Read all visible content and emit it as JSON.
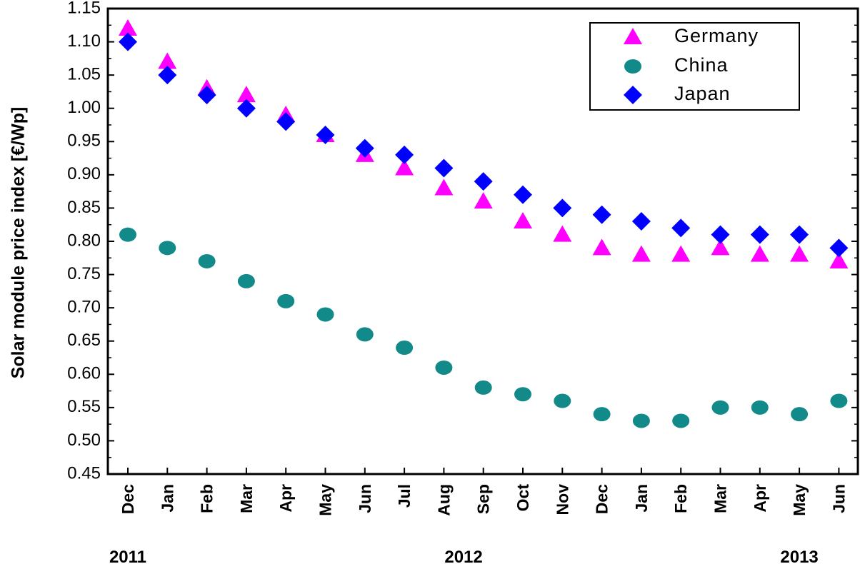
{
  "chart_data": {
    "type": "scatter",
    "ylabel": "Solar module price index [€/Wp]",
    "ylim": [
      0.45,
      1.15
    ],
    "yticks": [
      0.45,
      0.5,
      0.55,
      0.6,
      0.65,
      0.7,
      0.75,
      0.8,
      0.85,
      0.9,
      0.95,
      1.0,
      1.05,
      1.1,
      1.15
    ],
    "ytick_labels": [
      "0.45",
      "0.50",
      "0.55",
      "0.60",
      "0.65",
      "0.70",
      "0.75",
      "0.80",
      "0.85",
      "0.90",
      "0.95",
      "1.00",
      "1.05",
      "1.10",
      "1.15"
    ],
    "categories": [
      "Dec",
      "Jan",
      "Feb",
      "Mar",
      "Apr",
      "May",
      "Jun",
      "Jul",
      "Aug",
      "Sep",
      "Oct",
      "Nov",
      "Dec",
      "Jan",
      "Feb",
      "Mar",
      "Apr",
      "May",
      "Jun"
    ],
    "years": [
      {
        "label": "2011",
        "anchor_index": 0
      },
      {
        "label": "2012",
        "anchor_index": 8.5
      },
      {
        "label": "2013",
        "anchor_index": 17
      }
    ],
    "legend_position": "top-right",
    "series": [
      {
        "name": "Germany",
        "marker": "triangle",
        "color": "#ff00ff",
        "values": [
          1.12,
          1.07,
          1.03,
          1.02,
          0.99,
          0.96,
          0.93,
          0.91,
          0.88,
          0.86,
          0.83,
          0.81,
          0.79,
          0.78,
          0.78,
          0.79,
          0.78,
          0.78,
          0.77
        ]
      },
      {
        "name": "China",
        "marker": "circle",
        "color": "#138a8a",
        "values": [
          0.81,
          0.79,
          0.77,
          0.74,
          0.71,
          0.69,
          0.66,
          0.64,
          0.61,
          0.58,
          0.57,
          0.56,
          0.54,
          0.53,
          0.53,
          0.55,
          0.55,
          0.54,
          0.56
        ]
      },
      {
        "name": "Japan",
        "marker": "diamond",
        "color": "#0000ff",
        "values": [
          1.1,
          1.05,
          1.02,
          1.0,
          0.98,
          0.96,
          0.94,
          0.93,
          0.91,
          0.89,
          0.87,
          0.85,
          0.84,
          0.83,
          0.82,
          0.81,
          0.81,
          0.81,
          0.79
        ]
      }
    ]
  }
}
